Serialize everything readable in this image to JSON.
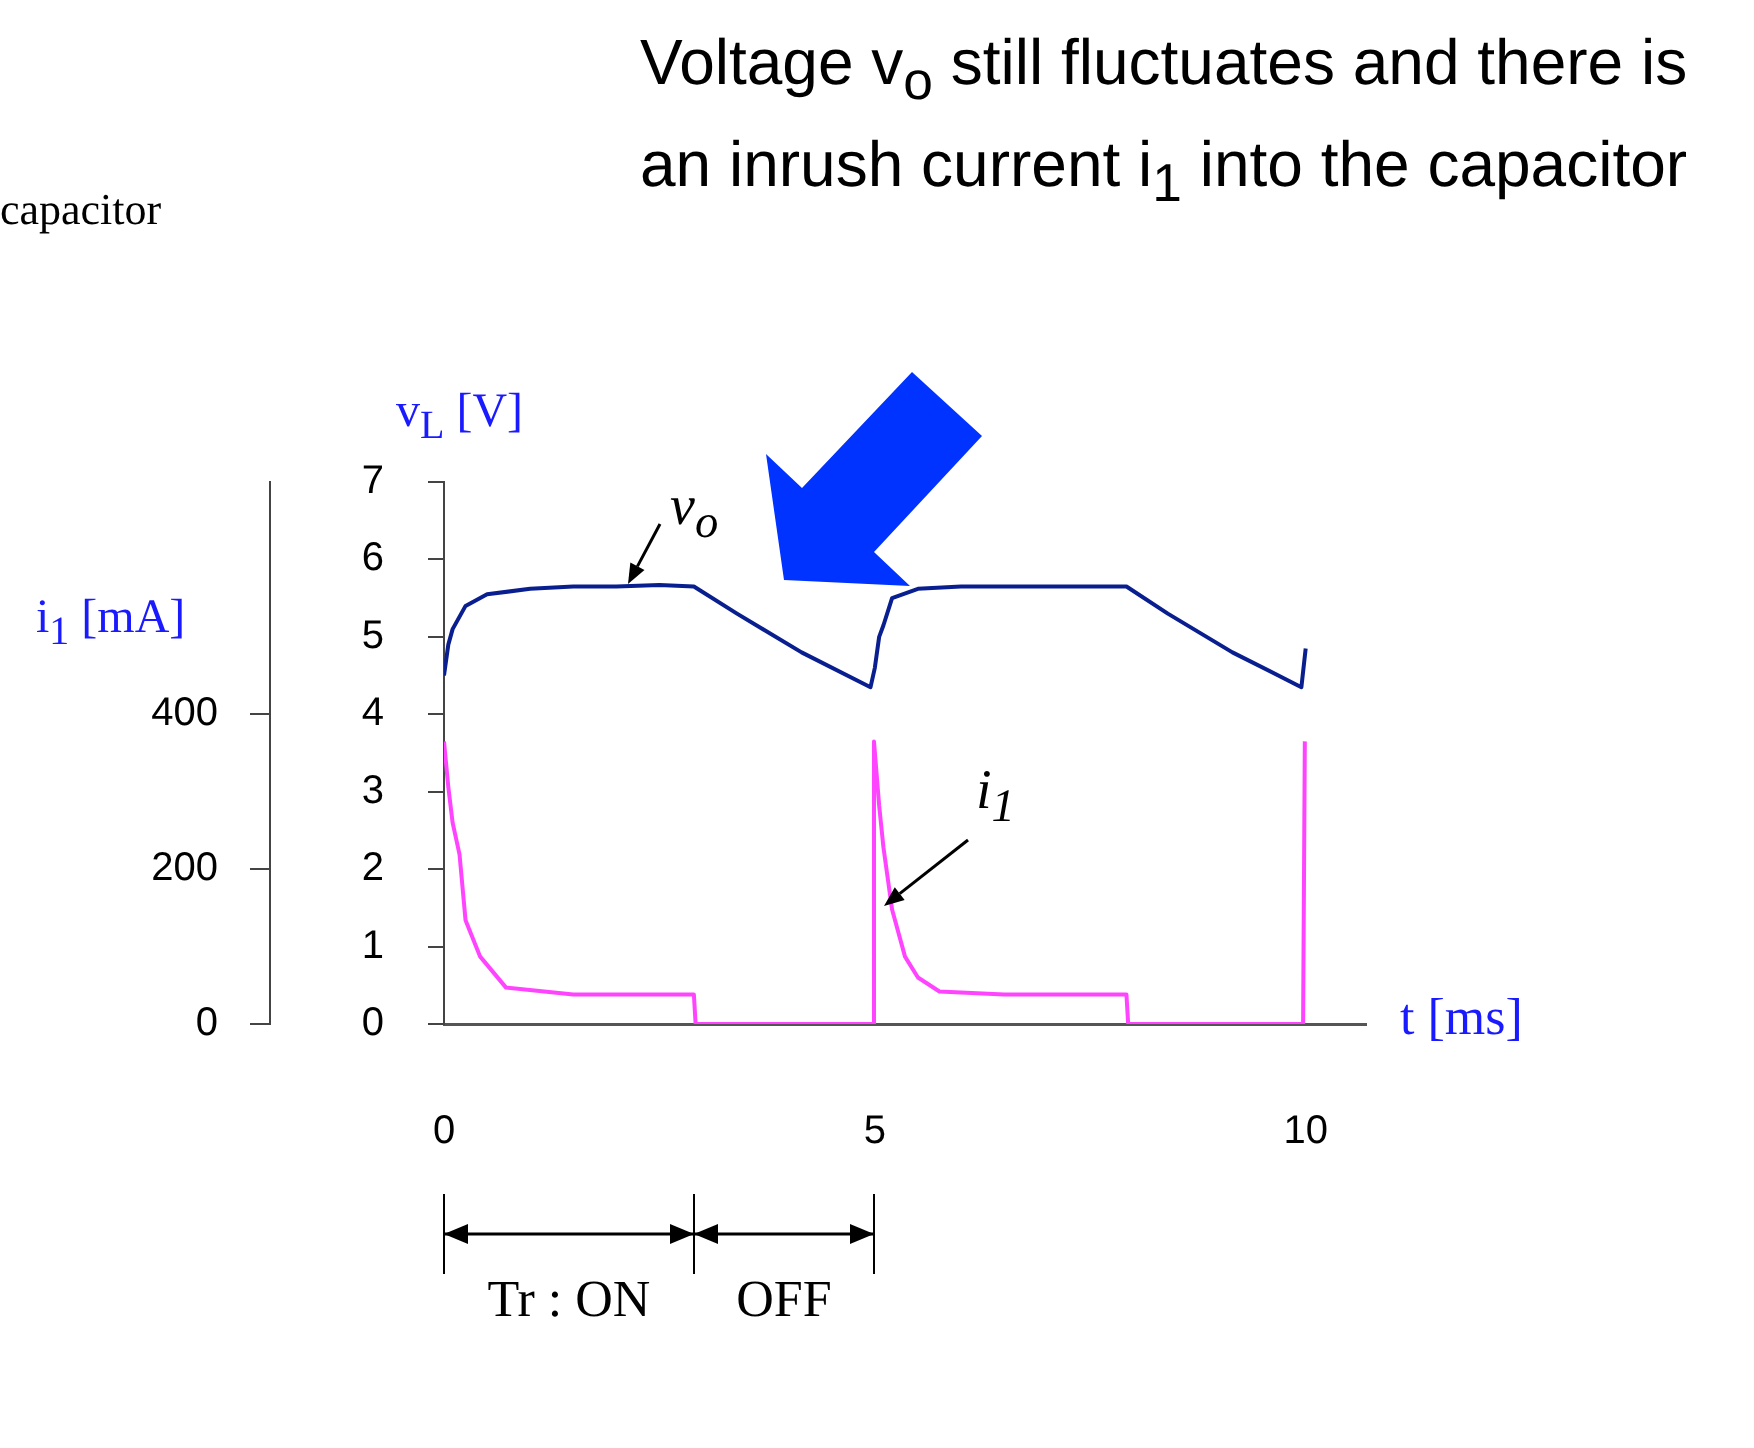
{
  "chart_data": {
    "type": "line",
    "annotations": [
      "capacitor",
      "Voltage v$_{o}$ still fluctuates and there is an inrush current i$_{1}$ into the capacitor",
      "Tr : ON",
      "OFF"
    ],
    "xlabel": "t [ms]",
    "ylabel": "v$_{L}$ [V]",
    "y2label": "i$_{1}$ [mA]",
    "xlim": [
      0,
      10.7
    ],
    "xticks": [
      0,
      5,
      10
    ],
    "ylim": [
      0,
      7
    ],
    "yticks": [
      0,
      1,
      2,
      3,
      4,
      5,
      6,
      7
    ],
    "y2lim": [
      0,
      700
    ],
    "y2ticks": [
      0,
      200,
      400
    ],
    "series": [
      {
        "name": "v$_{o}$",
        "color": "#0a1f8f",
        "x": [
          0,
          0.05,
          0.1,
          0.25,
          0.5,
          1.0,
          1.5,
          2.0,
          2.5,
          2.9,
          3.4,
          4.15,
          4.95,
          5.0,
          5.05,
          5.1,
          5.2,
          5.5,
          6.0,
          7.0,
          7.92,
          8.4,
          9.15,
          9.95,
          10.0
        ],
        "values": [
          4.5,
          4.9,
          5.1,
          5.4,
          5.55,
          5.62,
          5.65,
          5.65,
          5.67,
          5.65,
          5.3,
          4.8,
          4.35,
          4.6,
          5.0,
          5.15,
          5.5,
          5.62,
          5.65,
          5.65,
          5.65,
          5.3,
          4.8,
          4.35,
          4.85
        ]
      },
      {
        "name": "i$_{1}$",
        "color": "#ff44ff",
        "axis": "y2",
        "x": [
          0,
          0.05,
          0.1,
          0.18,
          0.25,
          0.42,
          0.72,
          1.5,
          2.9,
          2.92,
          4.97,
          4.99,
          5.05,
          5.1,
          5.2,
          5.35,
          5.5,
          5.75,
          6.5,
          7.92,
          7.94,
          9.97,
          9.99
        ],
        "values": [
          365,
          306,
          260,
          219,
          134,
          87,
          47,
          38,
          38,
          0,
          0,
          365,
          282,
          228,
          148,
          87,
          60,
          42,
          38,
          38,
          0,
          0,
          365
        ]
      }
    ],
    "grid": false,
    "legend": false
  }
}
